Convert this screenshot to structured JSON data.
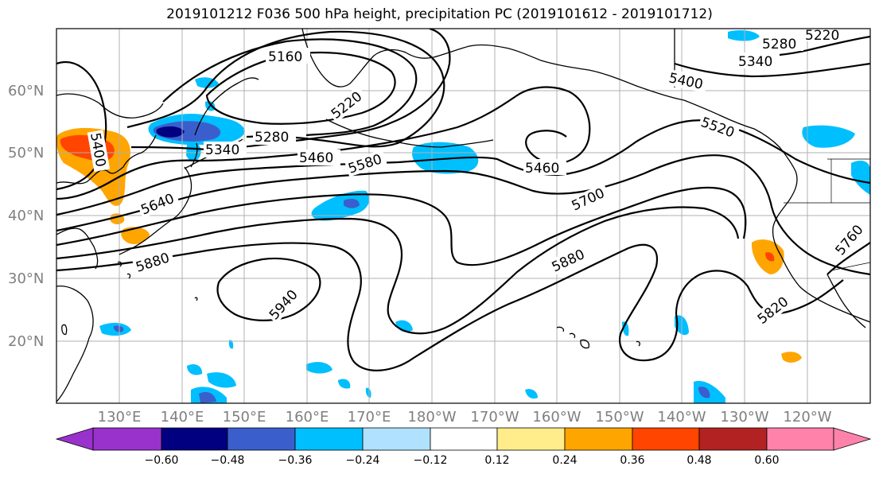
{
  "title": "2019101212 F036 500 hPa height, precipitation PC (2019101612 - 2019101712)",
  "lat_labels": [
    "60°N",
    "50°N",
    "40°N",
    "30°N",
    "20°N"
  ],
  "lon_labels": [
    "130°E",
    "140°E",
    "150°E",
    "160°E",
    "170°E",
    "180°W",
    "170°W",
    "160°W",
    "150°W",
    "140°W",
    "130°W",
    "120°W"
  ],
  "colorbar": {
    "ticks": [
      "−0.60",
      "−0.48",
      "−0.36",
      "−0.24",
      "−0.12",
      "0.12",
      "0.24",
      "0.36",
      "0.48",
      "0.60"
    ],
    "colors": [
      "#9932cc",
      "#000080",
      "#3a5fcd",
      "#00bfff",
      "#b0e2ff",
      "#ffffff",
      "#ffec8b",
      "#ffa500",
      "#ff4500",
      "#b22222",
      "#ff82ab"
    ]
  },
  "contour_labels": [
    "5160",
    "5220",
    "5280",
    "5340",
    "5400",
    "5460",
    "5520",
    "5580",
    "5640",
    "5700",
    "5760",
    "5820",
    "5880",
    "5940"
  ],
  "colors": {
    "contour": "#000000",
    "coast": "#000000",
    "grid": "#b0b0b0",
    "tick_text": "#7f7f7f"
  }
}
